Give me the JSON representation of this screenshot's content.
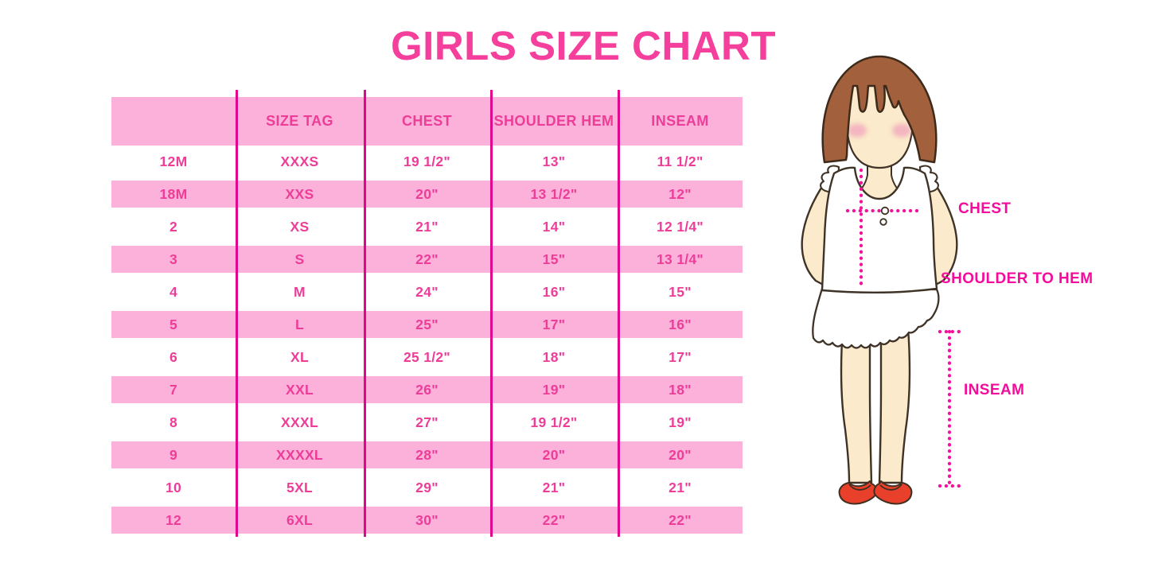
{
  "chart_data": {
    "type": "table",
    "title": "GIRLS SIZE CHART",
    "columns": [
      "",
      "SIZE TAG",
      "CHEST",
      "SHOULDER HEM",
      "INSEAM"
    ],
    "rows": [
      [
        "12M",
        "XXXS",
        "19 1/2\"",
        "13\"",
        "11 1/2\""
      ],
      [
        "18M",
        "XXS",
        "20\"",
        "13 1/2\"",
        "12\""
      ],
      [
        "2",
        "XS",
        "21\"",
        "14\"",
        "12 1/4\""
      ],
      [
        "3",
        "S",
        "22\"",
        "15\"",
        "13 1/4\""
      ],
      [
        "4",
        "M",
        "24\"",
        "16\"",
        "15\""
      ],
      [
        "5",
        "L",
        "25\"",
        "17\"",
        "16\""
      ],
      [
        "6",
        "XL",
        "25 1/2\"",
        "18\"",
        "17\""
      ],
      [
        "7",
        "XXL",
        "26\"",
        "19\"",
        "18\""
      ],
      [
        "8",
        "XXXL",
        "27\"",
        "19 1/2\"",
        "19\""
      ],
      [
        "9",
        "XXXXL",
        "28\"",
        "20\"",
        "20\""
      ],
      [
        "10",
        "5XL",
        "29\"",
        "21\"",
        "21\""
      ],
      [
        "12",
        "6XL",
        "30\"",
        "22\"",
        "22\""
      ]
    ],
    "layout": {
      "striped": true,
      "stripe_color": "#FBB1D9",
      "column_dividers": "#E2068C"
    }
  },
  "figure_labels": {
    "chest": "CHEST",
    "shoulder_to_hem": "SHOULDER TO HEM",
    "inseam": "INSEAM"
  },
  "colors": {
    "title_pink": "#F43F9C",
    "row_pink": "#FBB1D9",
    "divider_magenta": "#E2068C",
    "cell_text_pink": "#EE3D99",
    "label_magenta": "#F30C9B",
    "dotted_line_magenta": "#F5109E",
    "hair_brown": "#A2613C",
    "skin": "#FBEACB",
    "shoe_red": "#E8402A"
  }
}
